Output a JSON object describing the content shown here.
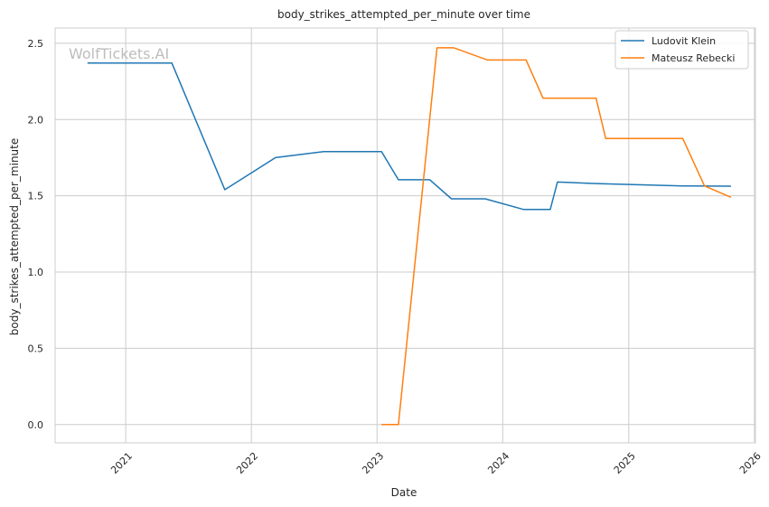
{
  "chart_data": {
    "type": "line",
    "title": "body_strikes_attempted_per_minute over time",
    "xlabel": "Date",
    "ylabel": "body_strikes_attempted_per_minute",
    "watermark": "WolfTickets.AI",
    "x_ticks": [
      "2021",
      "2022",
      "2023",
      "2024",
      "2025",
      "2026"
    ],
    "y_ticks": [
      "0.0",
      "0.5",
      "1.0",
      "1.5",
      "2.0",
      "2.5"
    ],
    "xlim": [
      "2020-06-10",
      "2026-01-04"
    ],
    "ylim": [
      -0.12,
      2.6
    ],
    "grid": true,
    "legend_position": "top-right",
    "series": [
      {
        "name": "Ludovit Klein",
        "color": "#1f77b4",
        "points": [
          [
            "2020-09-12",
            2.37
          ],
          [
            "2021-05-15",
            2.37
          ],
          [
            "2021-10-16",
            1.54
          ],
          [
            "2022-03-12",
            1.75
          ],
          [
            "2022-07-30",
            1.79
          ],
          [
            "2023-01-14",
            1.79
          ],
          [
            "2023-03-04",
            1.605
          ],
          [
            "2023-06-03",
            1.605
          ],
          [
            "2023-08-05",
            1.48
          ],
          [
            "2023-11-11",
            1.48
          ],
          [
            "2024-03-02",
            1.41
          ],
          [
            "2024-05-18",
            1.41
          ],
          [
            "2024-06-08",
            1.59
          ],
          [
            "2024-09-28",
            1.58
          ],
          [
            "2025-06-07",
            1.565
          ],
          [
            "2025-10-25",
            1.563
          ]
        ]
      },
      {
        "name": "Mateusz Rebecki",
        "color": "#ff7f0e",
        "points": [
          [
            "2023-01-14",
            0.0
          ],
          [
            "2023-03-04",
            0.0
          ],
          [
            "2023-06-24",
            2.47
          ],
          [
            "2023-08-12",
            2.47
          ],
          [
            "2023-11-18",
            2.39
          ],
          [
            "2024-03-09",
            2.39
          ],
          [
            "2024-04-27",
            2.14
          ],
          [
            "2024-09-28",
            2.14
          ],
          [
            "2024-10-26",
            1.875
          ],
          [
            "2025-06-07",
            1.875
          ],
          [
            "2025-08-09",
            1.565
          ],
          [
            "2025-10-25",
            1.49
          ]
        ]
      }
    ]
  }
}
